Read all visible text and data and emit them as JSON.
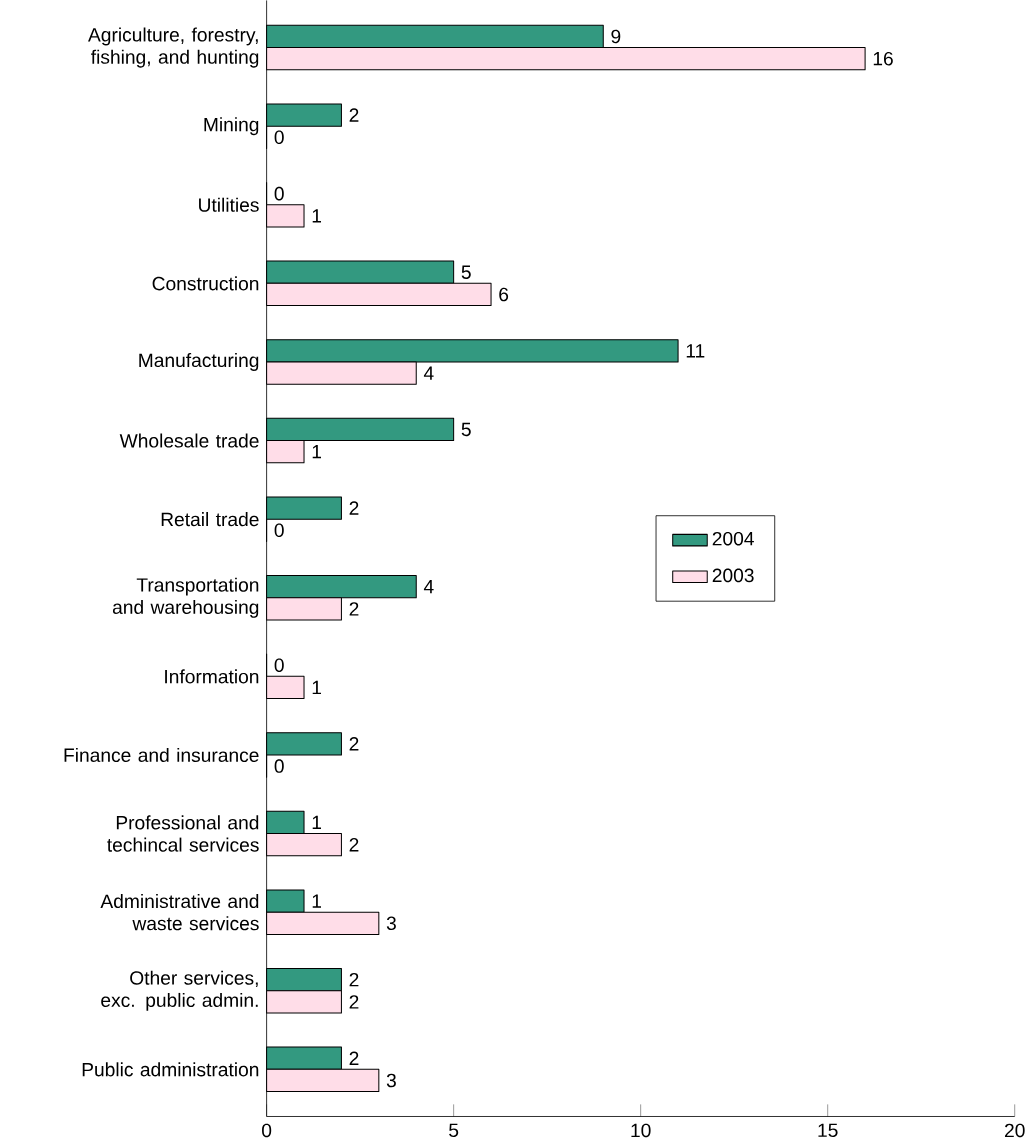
{
  "chart_data": {
    "type": "bar",
    "orientation": "horizontal",
    "categories": [
      "Agriculture, forestry, fishing, and hunting",
      "Mining",
      "Utilities",
      "Construction",
      "Manufacturing",
      "Wholesale trade",
      "Retail trade",
      "Transportation and warehousing",
      "Information",
      "Finance and insurance",
      "Professional and techincal services",
      "Administrative and waste services",
      "Other services, exc. public admin.",
      "Public administration"
    ],
    "series": [
      {
        "name": "2004",
        "color": "#339980",
        "values": [
          9,
          2,
          0,
          5,
          11,
          5,
          2,
          4,
          0,
          2,
          1,
          1,
          2,
          2
        ]
      },
      {
        "name": "2003",
        "color": "#ffdde8",
        "values": [
          16,
          0,
          1,
          6,
          4,
          1,
          0,
          2,
          1,
          0,
          2,
          3,
          2,
          3
        ]
      }
    ],
    "xlim": [
      0,
      20
    ],
    "xticks": [
      0,
      5,
      10,
      15,
      20
    ],
    "data_labels": true,
    "legend": "right",
    "grid": false
  }
}
